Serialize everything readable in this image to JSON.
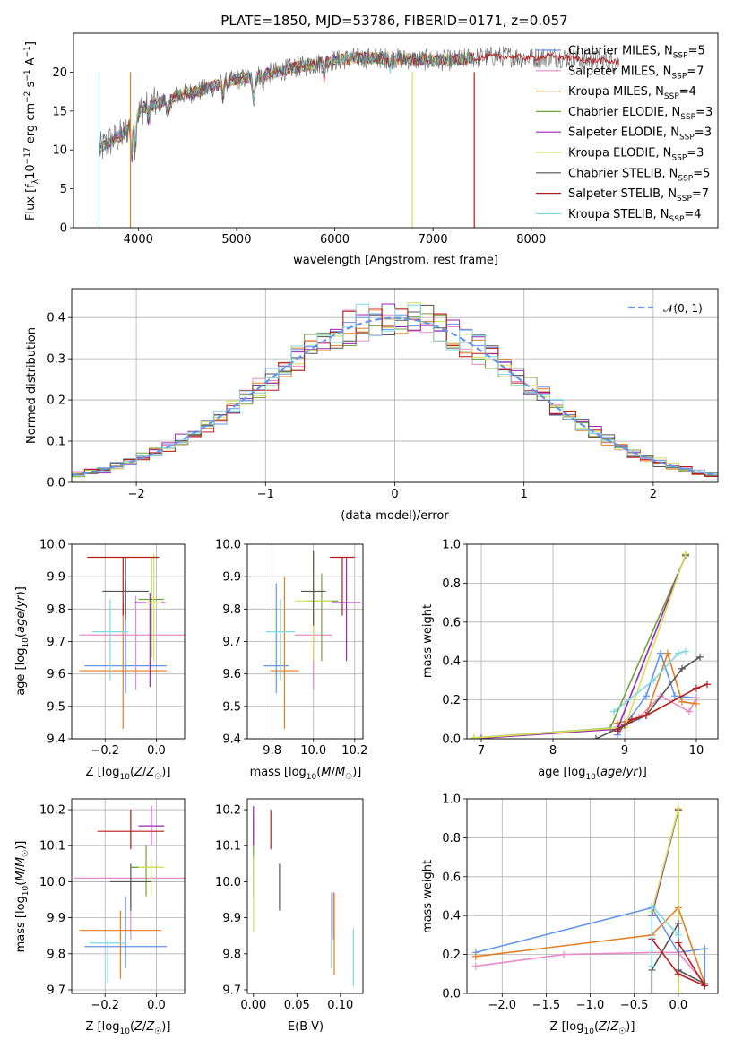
{
  "figure": {
    "title": "PLATE=1850, MJD=53786, FIBERID=0171, z=0.057",
    "colors": {
      "chabrier_miles": "#6495ED",
      "salpeter_miles": "#E98BC8",
      "kroupa_miles": "#E67E22",
      "chabrier_elodie": "#70A33B",
      "salpeter_elodie": "#9B27B0",
      "kroupa_elodie": "#D4E157",
      "chabrier_stelib": "#555555",
      "salpeter_stelib": "#B71C1C",
      "kroupa_stelib": "#7FD9E0",
      "gaussian": "#6495ED"
    }
  },
  "chart_data": [
    {
      "id": "spectrum",
      "type": "line",
      "title": "PLATE=1850, MJD=53786, FIBERID=0171, z=0.057",
      "xlabel": "wavelength [Angstrom, rest frame]",
      "ylabel": "Flux [fλ10⁻¹⁷ erg cm⁻² s⁻¹ A⁻¹]",
      "xlim": [
        3340,
        9900
      ],
      "ylim": [
        0,
        25
      ],
      "xticks": [
        4000,
        5000,
        6000,
        7000,
        8000
      ],
      "yticks": [
        0,
        5,
        10,
        15,
        20
      ],
      "continuum": {
        "x": [
          3600,
          3700,
          3850,
          3950,
          4050,
          4200,
          4400,
          4600,
          4800,
          5000,
          5200,
          5400,
          5600,
          5800,
          6000,
          6200,
          6400,
          6600,
          6800,
          7000,
          7200,
          7400,
          7600,
          7800,
          8000,
          8200,
          8400,
          8600,
          8800,
          8900
        ],
        "y": [
          10.0,
          11.0,
          12.0,
          14.0,
          15.5,
          16.0,
          17.0,
          17.5,
          18.3,
          19.0,
          19.5,
          20.0,
          20.6,
          21.0,
          21.5,
          21.8,
          21.8,
          21.8,
          21.6,
          21.5,
          21.5,
          21.8,
          22.0,
          22.0,
          21.8,
          22.0,
          21.8,
          21.5,
          21.4,
          21.2
        ]
      },
      "models_end": 7420,
      "legend": {
        "position": "top-right",
        "entries": [
          "Chabrier MILES, N_SSP=5",
          "Salpeter MILES, N_SSP=7",
          "Kroupa MILES, N_SSP=4",
          "Chabrier ELODIE, N_SSP=3",
          "Salpeter ELODIE, N_SSP=3",
          "Kroupa ELODIE, N_SSP=3",
          "Chabrier STELIB, N_SSP=5",
          "Salpeter STELIB, N_SSP=7",
          "Kroupa STELIB, N_SSP=4"
        ]
      },
      "series": [
        {
          "name": "Chabrier MILES, N_SSP=5",
          "color": "#6495ED"
        },
        {
          "name": "Salpeter MILES, N_SSP=7",
          "color": "#E98BC8"
        },
        {
          "name": "Kroupa MILES, N_SSP=4",
          "color": "#E67E22"
        },
        {
          "name": "Chabrier ELODIE, N_SSP=3",
          "color": "#70A33B"
        },
        {
          "name": "Salpeter ELODIE, N_SSP=3",
          "color": "#9B27B0"
        },
        {
          "name": "Kroupa ELODIE, N_SSP=3",
          "color": "#D4E157"
        },
        {
          "name": "Chabrier STELIB, N_SSP=5",
          "color": "#555555"
        },
        {
          "name": "Salpeter STELIB, N_SSP=7",
          "color": "#B71C1C"
        },
        {
          "name": "Kroupa STELIB, N_SSP=4",
          "color": "#7FD9E0"
        }
      ]
    },
    {
      "id": "residuals",
      "type": "line",
      "xlabel": "(data-model)/error",
      "ylabel": "Normed distribution",
      "xlim": [
        -2.5,
        2.5
      ],
      "ylim": [
        0,
        0.47
      ],
      "xticks": [
        -2,
        -1,
        0,
        1,
        2
      ],
      "xticklabels": [
        "−2",
        "−1",
        "0",
        "1",
        "2"
      ],
      "yticks": [
        0.0,
        0.1,
        0.2,
        0.3,
        0.4
      ],
      "yticklabels": [
        "0.0",
        "0.1",
        "0.2",
        "0.3",
        "0.4"
      ],
      "grid": true,
      "legend": {
        "position": "top-right",
        "entries": [
          "𝒩(0, 1)"
        ]
      },
      "bin_width": 0.1,
      "gaussian": {
        "name": "𝒩(0, 1)",
        "mean": 0,
        "sigma": 1,
        "color": "#6495ED"
      }
    },
    {
      "id": "age-vs-Z",
      "type": "scatter",
      "xlabel": "Z [log10(Z/Z☉)]",
      "ylabel": "age [log10(age/yr)]",
      "xlim": [
        -0.33,
        0.11
      ],
      "ylim": [
        9.4,
        10.0
      ],
      "xticks": [
        -0.2,
        0.0
      ],
      "xticklabels": [
        "−0.2",
        "0.0"
      ],
      "yticks": [
        9.4,
        9.5,
        9.6,
        9.7,
        9.8,
        9.9,
        10.0
      ],
      "yticklabels": [
        "9.4",
        "9.5",
        "9.6",
        "9.7",
        "9.8",
        "9.9",
        "10.0"
      ],
      "grid": true,
      "points": [
        {
          "x": -0.12,
          "y": 9.625,
          "xerr": 0.16,
          "yerr": [
            9.54,
            9.88
          ],
          "color": "#6495ED"
        },
        {
          "x": -0.08,
          "y": 9.72,
          "xerr": 0.22,
          "yerr": [
            9.55,
            9.84
          ],
          "color": "#E98BC8"
        },
        {
          "x": -0.13,
          "y": 9.61,
          "xerr": 0.17,
          "yerr": [
            9.43,
            9.82
          ],
          "color": "#E67E22"
        },
        {
          "x": -0.02,
          "y": 9.83,
          "xerr": 0.05,
          "yerr": [
            9.65,
            9.96
          ],
          "color": "#70A33B"
        },
        {
          "x": -0.025,
          "y": 9.82,
          "xerr": 0.06,
          "yerr": [
            9.56,
            9.85
          ],
          "color": "#9B27B0"
        },
        {
          "x": -0.01,
          "y": 9.82,
          "xerr": 0.03,
          "yerr": [
            9.64,
            9.97
          ],
          "color": "#D4E157"
        },
        {
          "x": -0.12,
          "y": 9.855,
          "xerr": 0.09,
          "yerr": [
            9.77,
            9.96
          ],
          "color": "#555555"
        },
        {
          "x": -0.13,
          "y": 9.96,
          "xerr": 0.14,
          "yerr": [
            9.78,
            9.96
          ],
          "color": "#B71C1C"
        },
        {
          "x": -0.18,
          "y": 9.73,
          "xerr": 0.07,
          "yerr": [
            9.58,
            9.83
          ],
          "color": "#7FD9E0"
        }
      ]
    },
    {
      "id": "age-vs-mass",
      "type": "scatter",
      "xlabel": "mass [log10(M/M☉)]",
      "ylabel": "",
      "xlim": [
        9.68,
        10.24
      ],
      "ylim": [
        9.4,
        10.0
      ],
      "xticks": [
        9.8,
        10.0,
        10.2
      ],
      "xticklabels": [
        "9.8",
        "10.0",
        "10.2"
      ],
      "yticks": [
        9.4,
        9.5,
        9.6,
        9.7,
        9.8,
        9.9,
        10.0
      ],
      "yticklabels": [
        "9.4",
        "9.5",
        "9.6",
        "9.7",
        "9.8",
        "9.9",
        "10.0"
      ],
      "grid": true,
      "points": [
        {
          "x": 9.82,
          "y": 9.625,
          "xerr": 0.06,
          "yerr": [
            9.54,
            9.88
          ],
          "color": "#6495ED"
        },
        {
          "x": 10.0,
          "y": 9.72,
          "xerr": 0.09,
          "yerr": [
            9.55,
            9.84
          ],
          "color": "#E98BC8"
        },
        {
          "x": 9.86,
          "y": 9.61,
          "xerr": 0.07,
          "yerr": [
            9.43,
            9.9
          ],
          "color": "#E67E22"
        },
        {
          "x": 10.04,
          "y": 9.825,
          "xerr": 0.08,
          "yerr": [
            9.64,
            9.91
          ],
          "color": "#70A33B"
        },
        {
          "x": 10.16,
          "y": 9.82,
          "xerr": 0.07,
          "yerr": [
            9.64,
            9.96
          ],
          "color": "#9B27B0"
        },
        {
          "x": 10.0,
          "y": 9.825,
          "xerr": 0.09,
          "yerr": [
            9.64,
            9.97
          ],
          "color": "#D4E157"
        },
        {
          "x": 10.0,
          "y": 9.855,
          "xerr": 0.06,
          "yerr": [
            9.75,
            9.98
          ],
          "color": "#555555"
        },
        {
          "x": 10.14,
          "y": 9.96,
          "xerr": 0.06,
          "yerr": [
            9.78,
            9.96
          ],
          "color": "#B71C1C"
        },
        {
          "x": 9.84,
          "y": 9.73,
          "xerr": 0.07,
          "yerr": [
            9.58,
            9.83
          ],
          "color": "#7FD9E0"
        }
      ]
    },
    {
      "id": "mass-weight-vs-age",
      "type": "line",
      "xlabel": "age [log10(age/yr)]",
      "ylabel": "mass weight",
      "xlim": [
        6.8,
        10.3
      ],
      "ylim": [
        0,
        1.0
      ],
      "xticks": [
        7,
        8,
        9,
        10
      ],
      "yticks": [
        0.0,
        0.2,
        0.4,
        0.6,
        0.8,
        1.0
      ],
      "yticklabels": [
        "0.0",
        "0.2",
        "0.4",
        "0.6",
        "0.8",
        "1.0"
      ],
      "grid": true,
      "series": [
        {
          "color": "#6495ED",
          "x": [
            8.9,
            9.3,
            9.5,
            9.7,
            10.0
          ],
          "y": [
            0.02,
            0.22,
            0.44,
            0.22,
            0.21
          ]
        },
        {
          "color": "#E98BC8",
          "x": [
            8.9,
            9.2,
            9.5,
            9.9,
            10.0
          ],
          "y": [
            0.06,
            0.11,
            0.22,
            0.14,
            0.21
          ]
        },
        {
          "color": "#E67E22",
          "x": [
            8.9,
            9.3,
            9.6,
            9.8,
            10.0
          ],
          "y": [
            0.08,
            0.12,
            0.44,
            0.19,
            0.18
          ]
        },
        {
          "color": "#70A33B",
          "x": [
            6.9,
            8.8,
            9.85
          ],
          "y": [
            0.005,
            0.055,
            0.94
          ]
        },
        {
          "color": "#9B27B0",
          "x": [
            7.0,
            8.9,
            9.85
          ],
          "y": [
            0.003,
            0.05,
            0.945
          ]
        },
        {
          "color": "#D4E157",
          "x": [
            6.9,
            9.0,
            9.85
          ],
          "y": [
            0.004,
            0.058,
            0.95
          ]
        },
        {
          "color": "#555555",
          "x": [
            8.6,
            9.0,
            9.3,
            9.8,
            10.05
          ],
          "y": [
            0.0,
            0.07,
            0.12,
            0.36,
            0.42
          ]
        },
        {
          "color": "#B71C1C",
          "x": [
            8.9,
            9.1,
            9.3,
            10.0,
            10.15
          ],
          "y": [
            0.04,
            0.1,
            0.12,
            0.26,
            0.28
          ]
        },
        {
          "color": "#7FD9E0",
          "x": [
            8.85,
            9.4,
            9.75,
            9.85
          ],
          "y": [
            0.14,
            0.3,
            0.44,
            0.45
          ]
        }
      ]
    },
    {
      "id": "mass-vs-Z",
      "type": "scatter",
      "xlabel": "Z [log10(Z/Z☉)]",
      "ylabel": "mass [log10(M/M☉)]",
      "xlim": [
        -0.33,
        0.11
      ],
      "ylim": [
        9.69,
        10.23
      ],
      "xticks": [
        -0.2,
        0.0
      ],
      "xticklabels": [
        "−0.2",
        "0.0"
      ],
      "yticks": [
        9.7,
        9.8,
        9.9,
        10.0,
        10.1,
        10.2
      ],
      "yticklabels": [
        "9.7",
        "9.8",
        "9.9",
        "10.0",
        "10.1",
        "10.2"
      ],
      "grid": true,
      "points": [
        {
          "x": -0.12,
          "y": 9.82,
          "xerr": 0.16,
          "yerr": [
            9.76,
            9.96
          ],
          "color": "#6495ED"
        },
        {
          "x": -0.1,
          "y": 10.01,
          "xerr": 0.22,
          "yerr": [
            9.84,
            10.01
          ],
          "color": "#E98BC8"
        },
        {
          "x": -0.14,
          "y": 9.865,
          "xerr": 0.16,
          "yerr": [
            9.73,
            9.92
          ],
          "color": "#E67E22"
        },
        {
          "x": -0.04,
          "y": 10.04,
          "xerr": 0.06,
          "yerr": [
            9.96,
            10.1
          ],
          "color": "#70A33B"
        },
        {
          "x": -0.02,
          "y": 10.155,
          "xerr": 0.05,
          "yerr": [
            10.1,
            10.21
          ],
          "color": "#9B27B0"
        },
        {
          "x": -0.02,
          "y": 10.04,
          "xerr": 0.05,
          "yerr": [
            9.96,
            10.06
          ],
          "color": "#D4E157"
        },
        {
          "x": -0.1,
          "y": 10.0,
          "xerr": 0.08,
          "yerr": [
            9.92,
            10.05
          ],
          "color": "#555555"
        },
        {
          "x": -0.1,
          "y": 10.14,
          "xerr": 0.13,
          "yerr": [
            10.09,
            10.2
          ],
          "color": "#B71C1C"
        },
        {
          "x": -0.19,
          "y": 9.83,
          "xerr": 0.07,
          "yerr": [
            9.72,
            9.84
          ],
          "color": "#7FD9E0"
        }
      ]
    },
    {
      "id": "mass-vs-ebv",
      "type": "scatter",
      "xlabel": "E(B-V)",
      "ylabel": "",
      "xlim": [
        -0.007,
        0.126
      ],
      "ylim": [
        9.69,
        10.23
      ],
      "xticks": [
        0.0,
        0.05,
        0.1
      ],
      "xticklabels": [
        "0.00",
        "0.05",
        "0.10"
      ],
      "yticks": [
        9.7,
        9.8,
        9.9,
        10.0,
        10.1,
        10.2
      ],
      "yticklabels": [
        "9.7",
        "9.8",
        "9.9",
        "10.0",
        "10.1",
        "10.2"
      ],
      "points": [
        {
          "x": 0.09,
          "y": 9.82,
          "yerr": [
            9.76,
            9.97
          ],
          "color": "#6495ED"
        },
        {
          "x": 0.092,
          "y": 9.9,
          "yerr": [
            9.84,
            9.97
          ],
          "color": "#E98BC8"
        },
        {
          "x": 0.093,
          "y": 9.86,
          "yerr": [
            9.74,
            9.97
          ],
          "color": "#E67E22"
        },
        {
          "x": 0.0,
          "y": 10.1,
          "yerr": [
            9.96,
            10.19
          ],
          "color": "#70A33B"
        },
        {
          "x": 0.0,
          "y": 10.16,
          "yerr": [
            10.1,
            10.21
          ],
          "color": "#9B27B0"
        },
        {
          "x": 0.0,
          "y": 10.0,
          "yerr": [
            9.86,
            10.07
          ],
          "color": "#D4E157"
        },
        {
          "x": 0.03,
          "y": 9.99,
          "yerr": [
            9.92,
            10.05
          ],
          "color": "#555555"
        },
        {
          "x": 0.02,
          "y": 10.14,
          "yerr": [
            10.09,
            10.2
          ],
          "color": "#B71C1C"
        },
        {
          "x": 0.115,
          "y": 9.8,
          "yerr": [
            9.71,
            9.87
          ],
          "color": "#7FD9E0"
        }
      ]
    },
    {
      "id": "mass-weight-vs-Z",
      "type": "line",
      "xlabel": "Z [log10(Z/Z☉)]",
      "ylabel": "mass weight",
      "xlim": [
        -2.4,
        0.45
      ],
      "ylim": [
        0,
        1.0
      ],
      "xticks": [
        -2.0,
        -1.5,
        -1.0,
        -0.5,
        0.0
      ],
      "xticklabels": [
        "−2.0",
        "−1.5",
        "−1.0",
        "−0.5",
        "0.0"
      ],
      "yticks": [
        0.0,
        0.2,
        0.4,
        0.6,
        0.8,
        1.0
      ],
      "yticklabels": [
        "0.0",
        "0.2",
        "0.4",
        "0.6",
        "0.8",
        "1.0"
      ],
      "grid": true,
      "series": [
        {
          "color": "#6495ED",
          "x": [
            -2.3,
            -0.3,
            0.0,
            0.3,
            0.3
          ],
          "y": [
            0.21,
            0.44,
            0.21,
            0.23,
            0.04
          ]
        },
        {
          "color": "#E98BC8",
          "x": [
            -2.3,
            -1.3,
            -0.3,
            0.0,
            0.3
          ],
          "y": [
            0.14,
            0.2,
            0.21,
            0.21,
            0.05
          ]
        },
        {
          "color": "#E67E22",
          "x": [
            -2.3,
            -0.3,
            0.0,
            0.3
          ],
          "y": [
            0.19,
            0.3,
            0.44,
            0.05
          ]
        },
        {
          "color": "#70A33B",
          "x": [
            -0.3,
            0.0,
            0.0
          ],
          "y": [
            0.4,
            0.94,
            0.0
          ]
        },
        {
          "color": "#9B27B0",
          "x": [
            -0.3,
            0.0,
            0.0
          ],
          "y": [
            0.4,
            0.945,
            0.0
          ]
        },
        {
          "color": "#D4E157",
          "x": [
            -0.3,
            0.0,
            0.0
          ],
          "y": [
            0.42,
            0.95,
            0.0
          ]
        },
        {
          "color": "#555555",
          "x": [
            -0.3,
            -0.3,
            0.0,
            0.0,
            0.3
          ],
          "y": [
            0.0,
            0.12,
            0.36,
            0.12,
            0.05
          ]
        },
        {
          "color": "#B71C1C",
          "x": [
            -0.3,
            0.0,
            0.3,
            0.0
          ],
          "y": [
            0.28,
            0.1,
            0.04,
            0.26
          ]
        },
        {
          "color": "#7FD9E0",
          "x": [
            -0.3,
            -0.3,
            0.0
          ],
          "y": [
            0.14,
            0.45,
            0.3
          ]
        }
      ]
    }
  ]
}
